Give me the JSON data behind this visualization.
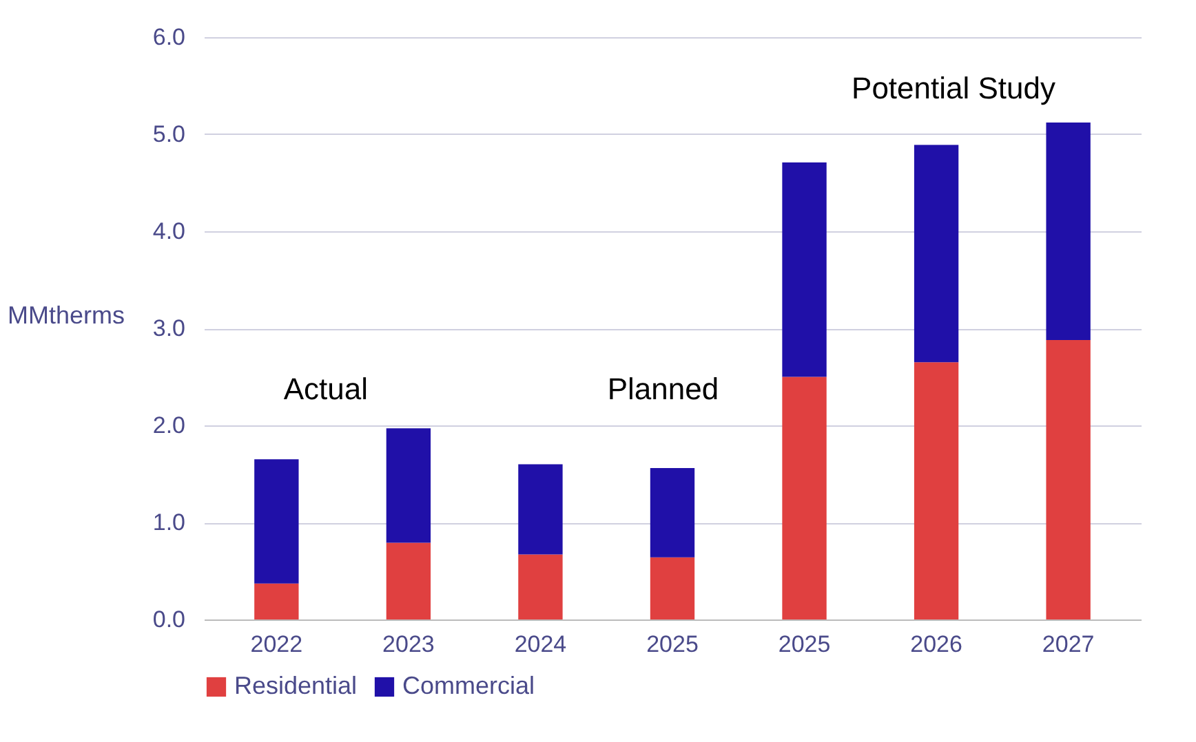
{
  "chart_data": {
    "type": "bar",
    "stacked": true,
    "ylabel": "MMtherms",
    "categories": [
      "2022",
      "2023",
      "2024",
      "2025",
      "2025",
      "2026",
      "2027"
    ],
    "series": [
      {
        "name": "Residential",
        "color": "#e04040",
        "values": [
          0.37,
          0.79,
          0.67,
          0.64,
          2.5,
          2.65,
          2.88
        ]
      },
      {
        "name": "Commercial",
        "color": "#2010a8",
        "values": [
          1.28,
          1.18,
          0.93,
          0.92,
          2.21,
          2.24,
          2.24
        ]
      }
    ],
    "ylim": [
      0,
      6
    ],
    "yticks": [
      {
        "value": 0,
        "label": "0.0"
      },
      {
        "value": 1,
        "label": "1.0"
      },
      {
        "value": 2,
        "label": "2.0"
      },
      {
        "value": 3,
        "label": "3.0"
      },
      {
        "value": 4,
        "label": "4.0"
      },
      {
        "value": 5,
        "label": "5.0"
      },
      {
        "value": 6,
        "label": "6.0"
      }
    ],
    "annotations": [
      "Actual",
      "Planned",
      "Potential Study"
    ],
    "grid": "y",
    "legend": "bottom"
  }
}
